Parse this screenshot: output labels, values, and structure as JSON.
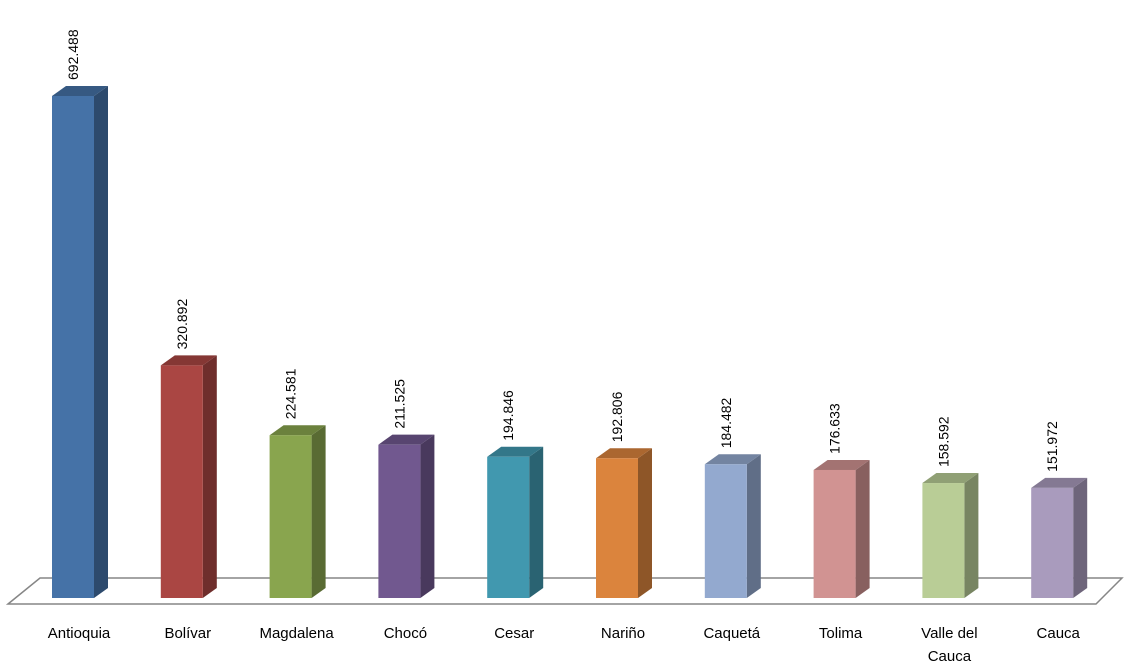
{
  "chart_data": {
    "type": "bar",
    "title": "",
    "xlabel": "",
    "ylabel": "",
    "categories": [
      "Antioquia",
      "Bolívar",
      "Magdalena",
      "Chocó",
      "Cesar",
      "Nariño",
      "Caquetá",
      "Tolima",
      "Valle del Cauca",
      "Cauca"
    ],
    "category_label_lines": [
      [
        "Antioquia"
      ],
      [
        "Bolívar"
      ],
      [
        "Magdalena"
      ],
      [
        "Chocó"
      ],
      [
        "Cesar"
      ],
      [
        "Nariño"
      ],
      [
        "Caquetá"
      ],
      [
        "Tolima"
      ],
      [
        "Valle del",
        "Cauca"
      ],
      [
        "Cauca"
      ]
    ],
    "values": [
      692488,
      320892,
      224581,
      211525,
      194846,
      192806,
      184482,
      176633,
      158592,
      151972
    ],
    "value_labels": [
      "692.488",
      "320.892",
      "224.581",
      "211.525",
      "194.846",
      "192.806",
      "184.482",
      "176.633",
      "158.592",
      "151.972"
    ],
    "colors": [
      "#4572a7",
      "#aa4643",
      "#89a54e",
      "#71588f",
      "#4198af",
      "#db843d",
      "#93a9cf",
      "#d19392",
      "#b9cd96",
      "#a99bbd"
    ],
    "ylim": [
      0,
      692488
    ],
    "grid": false,
    "legend": "none",
    "style": "3d-column"
  }
}
